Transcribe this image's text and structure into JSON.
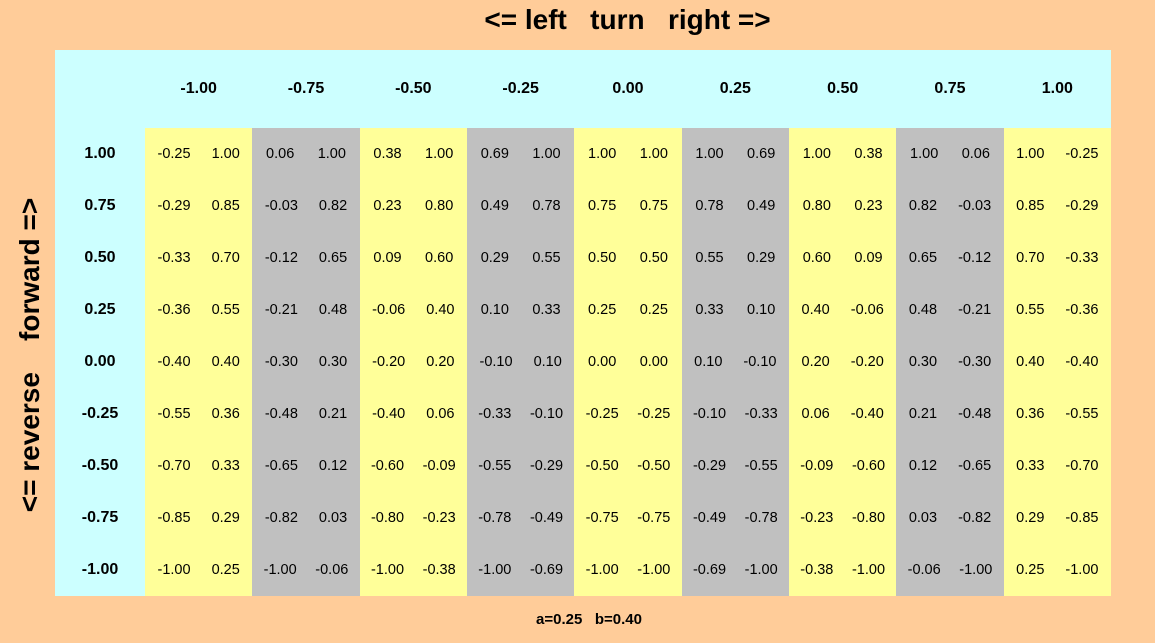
{
  "header": {
    "top_title": "<= left   turn   right =>",
    "side_title": "<= reverse    forward =>"
  },
  "footer": {
    "params": "a=0.25   b=0.40"
  },
  "col_shading": [
    "yellow",
    "gray",
    "yellow",
    "gray",
    "yellow",
    "gray",
    "yellow",
    "gray",
    "yellow"
  ],
  "table": {
    "columns": [
      "-1.00",
      "-0.75",
      "-0.50",
      "-0.25",
      "0.00",
      "0.25",
      "0.50",
      "0.75",
      "1.00"
    ],
    "rows": [
      {
        "label": "1.00",
        "cells": [
          [
            "-0.25",
            "1.00"
          ],
          [
            "0.06",
            "1.00"
          ],
          [
            "0.38",
            "1.00"
          ],
          [
            "0.69",
            "1.00"
          ],
          [
            "1.00",
            "1.00"
          ],
          [
            "1.00",
            "0.69"
          ],
          [
            "1.00",
            "0.38"
          ],
          [
            "1.00",
            "0.06"
          ],
          [
            "1.00",
            "-0.25"
          ]
        ]
      },
      {
        "label": "0.75",
        "cells": [
          [
            "-0.29",
            "0.85"
          ],
          [
            "-0.03",
            "0.82"
          ],
          [
            "0.23",
            "0.80"
          ],
          [
            "0.49",
            "0.78"
          ],
          [
            "0.75",
            "0.75"
          ],
          [
            "0.78",
            "0.49"
          ],
          [
            "0.80",
            "0.23"
          ],
          [
            "0.82",
            "-0.03"
          ],
          [
            "0.85",
            "-0.29"
          ]
        ]
      },
      {
        "label": "0.50",
        "cells": [
          [
            "-0.33",
            "0.70"
          ],
          [
            "-0.12",
            "0.65"
          ],
          [
            "0.09",
            "0.60"
          ],
          [
            "0.29",
            "0.55"
          ],
          [
            "0.50",
            "0.50"
          ],
          [
            "0.55",
            "0.29"
          ],
          [
            "0.60",
            "0.09"
          ],
          [
            "0.65",
            "-0.12"
          ],
          [
            "0.70",
            "-0.33"
          ]
        ]
      },
      {
        "label": "0.25",
        "cells": [
          [
            "-0.36",
            "0.55"
          ],
          [
            "-0.21",
            "0.48"
          ],
          [
            "-0.06",
            "0.40"
          ],
          [
            "0.10",
            "0.33"
          ],
          [
            "0.25",
            "0.25"
          ],
          [
            "0.33",
            "0.10"
          ],
          [
            "0.40",
            "-0.06"
          ],
          [
            "0.48",
            "-0.21"
          ],
          [
            "0.55",
            "-0.36"
          ]
        ]
      },
      {
        "label": "0.00",
        "cells": [
          [
            "-0.40",
            "0.40"
          ],
          [
            "-0.30",
            "0.30"
          ],
          [
            "-0.20",
            "0.20"
          ],
          [
            "-0.10",
            "0.10"
          ],
          [
            "0.00",
            "0.00"
          ],
          [
            "0.10",
            "-0.10"
          ],
          [
            "0.20",
            "-0.20"
          ],
          [
            "0.30",
            "-0.30"
          ],
          [
            "0.40",
            "-0.40"
          ]
        ]
      },
      {
        "label": "-0.25",
        "cells": [
          [
            "-0.55",
            "0.36"
          ],
          [
            "-0.48",
            "0.21"
          ],
          [
            "-0.40",
            "0.06"
          ],
          [
            "-0.33",
            "-0.10"
          ],
          [
            "-0.25",
            "-0.25"
          ],
          [
            "-0.10",
            "-0.33"
          ],
          [
            "0.06",
            "-0.40"
          ],
          [
            "0.21",
            "-0.48"
          ],
          [
            "0.36",
            "-0.55"
          ]
        ]
      },
      {
        "label": "-0.50",
        "cells": [
          [
            "-0.70",
            "0.33"
          ],
          [
            "-0.65",
            "0.12"
          ],
          [
            "-0.60",
            "-0.09"
          ],
          [
            "-0.55",
            "-0.29"
          ],
          [
            "-0.50",
            "-0.50"
          ],
          [
            "-0.29",
            "-0.55"
          ],
          [
            "-0.09",
            "-0.60"
          ],
          [
            "0.12",
            "-0.65"
          ],
          [
            "0.33",
            "-0.70"
          ]
        ]
      },
      {
        "label": "-0.75",
        "cells": [
          [
            "-0.85",
            "0.29"
          ],
          [
            "-0.82",
            "0.03"
          ],
          [
            "-0.80",
            "-0.23"
          ],
          [
            "-0.78",
            "-0.49"
          ],
          [
            "-0.75",
            "-0.75"
          ],
          [
            "-0.49",
            "-0.78"
          ],
          [
            "-0.23",
            "-0.80"
          ],
          [
            "0.03",
            "-0.82"
          ],
          [
            "0.29",
            "-0.85"
          ]
        ]
      },
      {
        "label": "-1.00",
        "cells": [
          [
            "-1.00",
            "0.25"
          ],
          [
            "-1.00",
            "-0.06"
          ],
          [
            "-1.00",
            "-0.38"
          ],
          [
            "-1.00",
            "-0.69"
          ],
          [
            "-1.00",
            "-1.00"
          ],
          [
            "-0.69",
            "-1.00"
          ],
          [
            "-0.38",
            "-1.00"
          ],
          [
            "-0.06",
            "-1.00"
          ],
          [
            "0.25",
            "-1.00"
          ]
        ]
      }
    ]
  }
}
